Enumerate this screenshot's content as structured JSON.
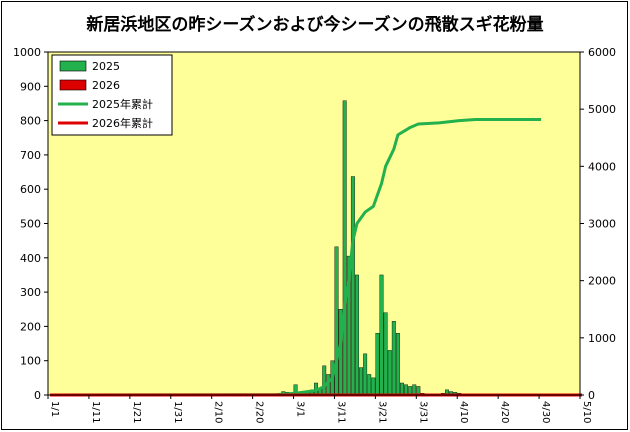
{
  "chart_data": {
    "type": "bar",
    "title": "新居浜地区の昨シーズンおよび今シーズンの飛散スギ花粉量",
    "x_tick_labels": [
      "1/1",
      "1/11",
      "1/21",
      "1/31",
      "2/10",
      "2/20",
      "3/1",
      "3/11",
      "3/21",
      "3/31",
      "4/10",
      "4/20",
      "4/30",
      "5/10"
    ],
    "y_left_ticks": [
      "0",
      "100",
      "200",
      "300",
      "400",
      "500",
      "600",
      "700",
      "800",
      "900",
      "1000"
    ],
    "y_right_ticks": [
      "0",
      "1000",
      "2000",
      "3000",
      "4000",
      "5000",
      "6000"
    ],
    "ylim_left": [
      0,
      1000
    ],
    "ylim_right": [
      0,
      6000
    ],
    "days": 130,
    "legend": [
      {
        "label": "2025",
        "kind": "bar",
        "color": "#22b14c"
      },
      {
        "label": "2026",
        "kind": "bar",
        "color": "#dd0000"
      },
      {
        "label": "2025年累計",
        "kind": "line",
        "color": "#22b14c"
      },
      {
        "label": "2026年累計",
        "kind": "line",
        "color": "#dd0000"
      }
    ],
    "colors": {
      "plot_bg": "#ffff99",
      "bar2025": "#22b14c",
      "bar2026": "#dd0000"
    },
    "series": [
      {
        "name": "2025",
        "type": "bar",
        "axis": "left",
        "points": [
          [
            41,
            1
          ],
          [
            44,
            1
          ],
          [
            47,
            1
          ],
          [
            50,
            2
          ],
          [
            53,
            1
          ],
          [
            54,
            2
          ],
          [
            55,
            1
          ],
          [
            56,
            3
          ],
          [
            57,
            10
          ],
          [
            58,
            8
          ],
          [
            59,
            5
          ],
          [
            60,
            30
          ],
          [
            61,
            8
          ],
          [
            62,
            10
          ],
          [
            63,
            12
          ],
          [
            64,
            15
          ],
          [
            65,
            35
          ],
          [
            66,
            20
          ],
          [
            67,
            85
          ],
          [
            68,
            60
          ],
          [
            69,
            100
          ],
          [
            70,
            432
          ],
          [
            71,
            250
          ],
          [
            72,
            858
          ],
          [
            73,
            405
          ],
          [
            74,
            637
          ],
          [
            75,
            350
          ],
          [
            76,
            80
          ],
          [
            77,
            120
          ],
          [
            78,
            60
          ],
          [
            79,
            50
          ],
          [
            80,
            180
          ],
          [
            81,
            350
          ],
          [
            82,
            240
          ],
          [
            83,
            130
          ],
          [
            84,
            215
          ],
          [
            85,
            180
          ],
          [
            86,
            35
          ],
          [
            87,
            30
          ],
          [
            88,
            25
          ],
          [
            89,
            30
          ],
          [
            90,
            25
          ],
          [
            91,
            5
          ],
          [
            92,
            3
          ],
          [
            93,
            2
          ],
          [
            94,
            2
          ],
          [
            95,
            3
          ],
          [
            96,
            5
          ],
          [
            97,
            15
          ],
          [
            98,
            10
          ],
          [
            99,
            8
          ],
          [
            100,
            5
          ],
          [
            101,
            2
          ],
          [
            102,
            2
          ],
          [
            103,
            1
          ],
          [
            104,
            1
          ],
          [
            105,
            1
          ]
        ]
      },
      {
        "name": "2026",
        "type": "bar",
        "axis": "left",
        "points": [
          [
            0,
            0
          ]
        ]
      },
      {
        "name": "2025年累計",
        "type": "line",
        "axis": "right",
        "points": [
          [
            0,
            0
          ],
          [
            55,
            5
          ],
          [
            60,
            30
          ],
          [
            65,
            80
          ],
          [
            67,
            150
          ],
          [
            69,
            300
          ],
          [
            70,
            600
          ],
          [
            71,
            900
          ],
          [
            72,
            1600
          ],
          [
            73,
            2000
          ],
          [
            74,
            2700
          ],
          [
            75,
            3000
          ],
          [
            77,
            3200
          ],
          [
            79,
            3300
          ],
          [
            81,
            3700
          ],
          [
            82,
            4000
          ],
          [
            84,
            4300
          ],
          [
            85,
            4550
          ],
          [
            88,
            4680
          ],
          [
            90,
            4740
          ],
          [
            95,
            4760
          ],
          [
            100,
            4800
          ],
          [
            104,
            4820
          ],
          [
            120,
            4820
          ]
        ]
      },
      {
        "name": "2026年累計",
        "type": "line",
        "axis": "right",
        "points": [
          [
            0,
            0
          ],
          [
            130,
            0
          ]
        ]
      }
    ]
  }
}
